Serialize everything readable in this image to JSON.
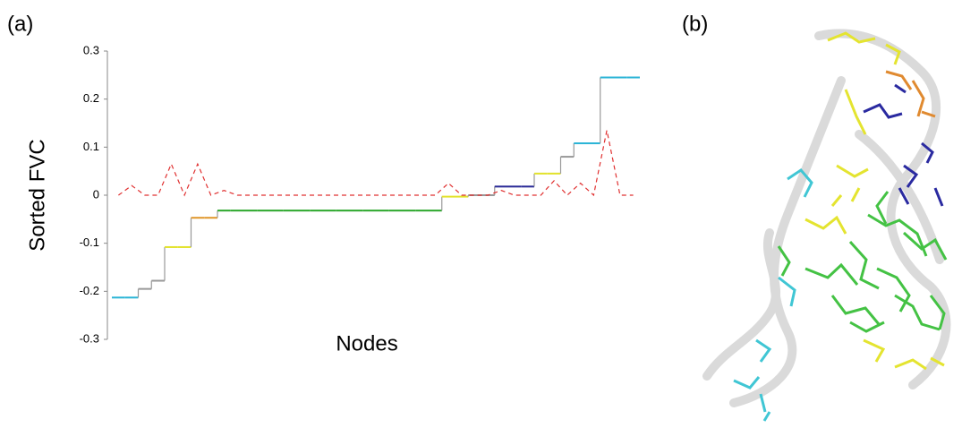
{
  "chart_data": {
    "type": "line",
    "panel_label": "(a)",
    "ylabel": "Sorted FVC",
    "xlabel": "Nodes",
    "categories": [
      null,
      null,
      null,
      null,
      null,
      null,
      null,
      null,
      null,
      null,
      null,
      null,
      null,
      null,
      null,
      null,
      null,
      null,
      null,
      null,
      null,
      null,
      null,
      null,
      null,
      null,
      null,
      null,
      null,
      null,
      null,
      null,
      null,
      null,
      null,
      null,
      null,
      null,
      null,
      null
    ],
    "series": [
      {
        "color": "#999999",
        "style": "step",
        "node_colors": [
          "#2ab4d6",
          "#2ab4d6",
          "#999999",
          "#999999",
          "#e2e22a",
          "#e2e22a",
          "#e0962a",
          "#e0962a",
          "#2aa62a",
          "#2aa62a",
          "#2aa62a",
          "#2aa62a",
          "#2aa62a",
          "#2aa62a",
          "#2aa62a",
          "#2aa62a",
          "#2aa62a",
          "#2aa62a",
          "#2aa62a",
          "#2aa62a",
          "#2aa62a",
          "#2aa62a",
          "#2aa62a",
          "#2aa62a",
          "#2aa62a",
          "#e2e22a",
          "#e2e22a",
          "#999999",
          "#999999",
          "#2a2a96",
          "#2a2a96",
          "#2a2a96",
          "#e2e22a",
          "#e2e22a",
          "#999999",
          "#2ab4d6",
          "#2ab4d6",
          "#2ab4d6",
          "#2ab4d6",
          "#2ab4d6"
        ],
        "values": [
          -0.213,
          -0.213,
          -0.195,
          -0.178,
          -0.108,
          -0.108,
          -0.047,
          -0.047,
          -0.032,
          -0.032,
          -0.032,
          -0.032,
          -0.032,
          -0.032,
          -0.032,
          -0.032,
          -0.032,
          -0.032,
          -0.032,
          -0.032,
          -0.032,
          -0.032,
          -0.032,
          -0.032,
          -0.032,
          -0.003,
          -0.003,
          0,
          0,
          0.018,
          0.018,
          0.018,
          0.045,
          0.045,
          0.08,
          0.108,
          0.108,
          0.245,
          0.245,
          0.245
        ]
      },
      {
        "color": "#e03030",
        "style": "dashed",
        "values": [
          0,
          0.02,
          0,
          0,
          0.065,
          0,
          0.065,
          0,
          0.01,
          0,
          0,
          0,
          0,
          0,
          0,
          0,
          0,
          0,
          0,
          0,
          0,
          0,
          0,
          0,
          0,
          0.025,
          0,
          0,
          0,
          0.01,
          0,
          0,
          0,
          0.03,
          0,
          0.025,
          0,
          0.135,
          0,
          0
        ]
      }
    ],
    "ylim": [
      -0.3,
      0.3
    ],
    "yticks": [
      -0.3,
      -0.2,
      -0.1,
      0,
      0.1,
      0.2,
      0.3
    ]
  },
  "image_panel": {
    "label": "(b)"
  }
}
